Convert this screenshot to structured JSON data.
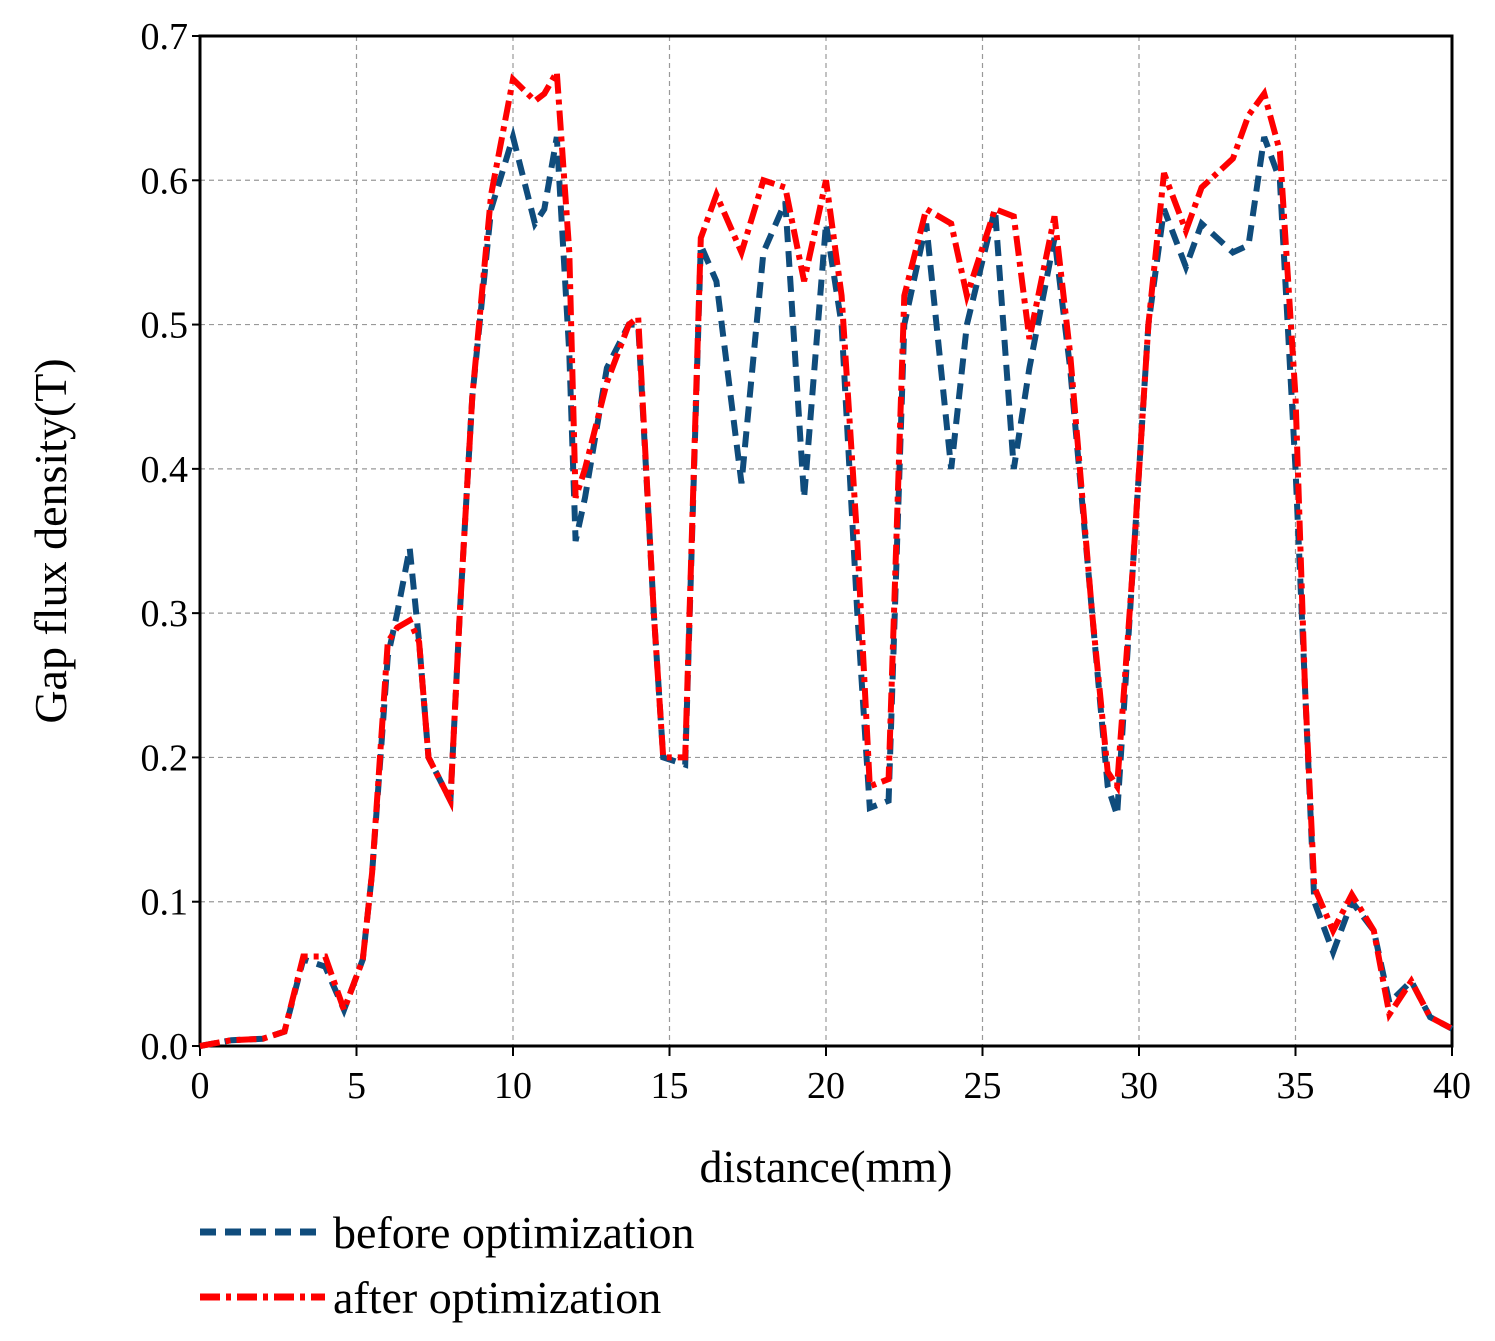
{
  "chart_data": {
    "type": "line",
    "xlabel": "distance(mm)",
    "ylabel": "Gap flux density(T)",
    "x": [
      0,
      0.5,
      1,
      2,
      2.7,
      3.3,
      4,
      4.6,
      5.2,
      5.5,
      6,
      6.3,
      6.7,
      7,
      7.3,
      8,
      8.3,
      8.7,
      9.3,
      10,
      10.7,
      11,
      11.4,
      11.8,
      12,
      12.3,
      13,
      13.7,
      14,
      14.5,
      14.8,
      15.5,
      16,
      16.5,
      17.3,
      18,
      18.7,
      19.3,
      20,
      20.5,
      21,
      21.4,
      22,
      22.5,
      23.2,
      24,
      24.5,
      25.4,
      26,
      26.5,
      27.3,
      27.8,
      28.5,
      29,
      29.3,
      29.8,
      30.3,
      30.8,
      31.5,
      32,
      33,
      33.5,
      34,
      34.5,
      35,
      35.3,
      35.6,
      36.2,
      36.8,
      37.5,
      38,
      38.7,
      39.3,
      40
    ],
    "series": [
      {
        "name": "before optimization",
        "color": "#0f4c7c",
        "style": "dashed",
        "values": [
          0,
          0.002,
          0.004,
          0.005,
          0.01,
          0.06,
          0.055,
          0.025,
          0.06,
          0.12,
          0.27,
          0.3,
          0.345,
          0.28,
          0.2,
          0.17,
          0.3,
          0.45,
          0.58,
          0.63,
          0.57,
          0.58,
          0.63,
          0.48,
          0.35,
          0.38,
          0.47,
          0.5,
          0.5,
          0.3,
          0.2,
          0.195,
          0.555,
          0.53,
          0.39,
          0.55,
          0.585,
          0.38,
          0.57,
          0.5,
          0.3,
          0.165,
          0.17,
          0.5,
          0.57,
          0.4,
          0.5,
          0.58,
          0.4,
          0.47,
          0.56,
          0.47,
          0.3,
          0.18,
          0.16,
          0.33,
          0.5,
          0.58,
          0.54,
          0.57,
          0.55,
          0.555,
          0.63,
          0.6,
          0.4,
          0.25,
          0.1,
          0.065,
          0.1,
          0.08,
          0.03,
          0.045,
          0.02,
          0.012
        ]
      },
      {
        "name": "after optimization",
        "color": "#ff0000",
        "style": "dashdot",
        "values": [
          0,
          0.002,
          0.004,
          0.005,
          0.01,
          0.062,
          0.062,
          0.025,
          0.06,
          0.12,
          0.28,
          0.29,
          0.295,
          0.28,
          0.2,
          0.17,
          0.3,
          0.45,
          0.59,
          0.67,
          0.655,
          0.66,
          0.675,
          0.55,
          0.38,
          0.4,
          0.46,
          0.5,
          0.505,
          0.3,
          0.2,
          0.2,
          0.56,
          0.59,
          0.55,
          0.6,
          0.595,
          0.53,
          0.6,
          0.52,
          0.35,
          0.18,
          0.185,
          0.52,
          0.58,
          0.57,
          0.52,
          0.58,
          0.575,
          0.49,
          0.575,
          0.48,
          0.3,
          0.19,
          0.18,
          0.33,
          0.5,
          0.605,
          0.565,
          0.595,
          0.615,
          0.645,
          0.66,
          0.62,
          0.45,
          0.25,
          0.11,
          0.08,
          0.105,
          0.08,
          0.022,
          0.045,
          0.02,
          0.012
        ]
      }
    ],
    "xlim": [
      0,
      40
    ],
    "xticks": [
      0,
      5,
      10,
      15,
      20,
      25,
      30,
      35,
      40
    ],
    "ylim": [
      0,
      0.7
    ],
    "yticks": [
      {
        "value": 0,
        "label": "0.0"
      },
      0.1,
      0.2,
      0.3,
      0.4,
      0.5,
      0.6,
      0.7
    ],
    "grid": true,
    "legend": "bottom"
  }
}
